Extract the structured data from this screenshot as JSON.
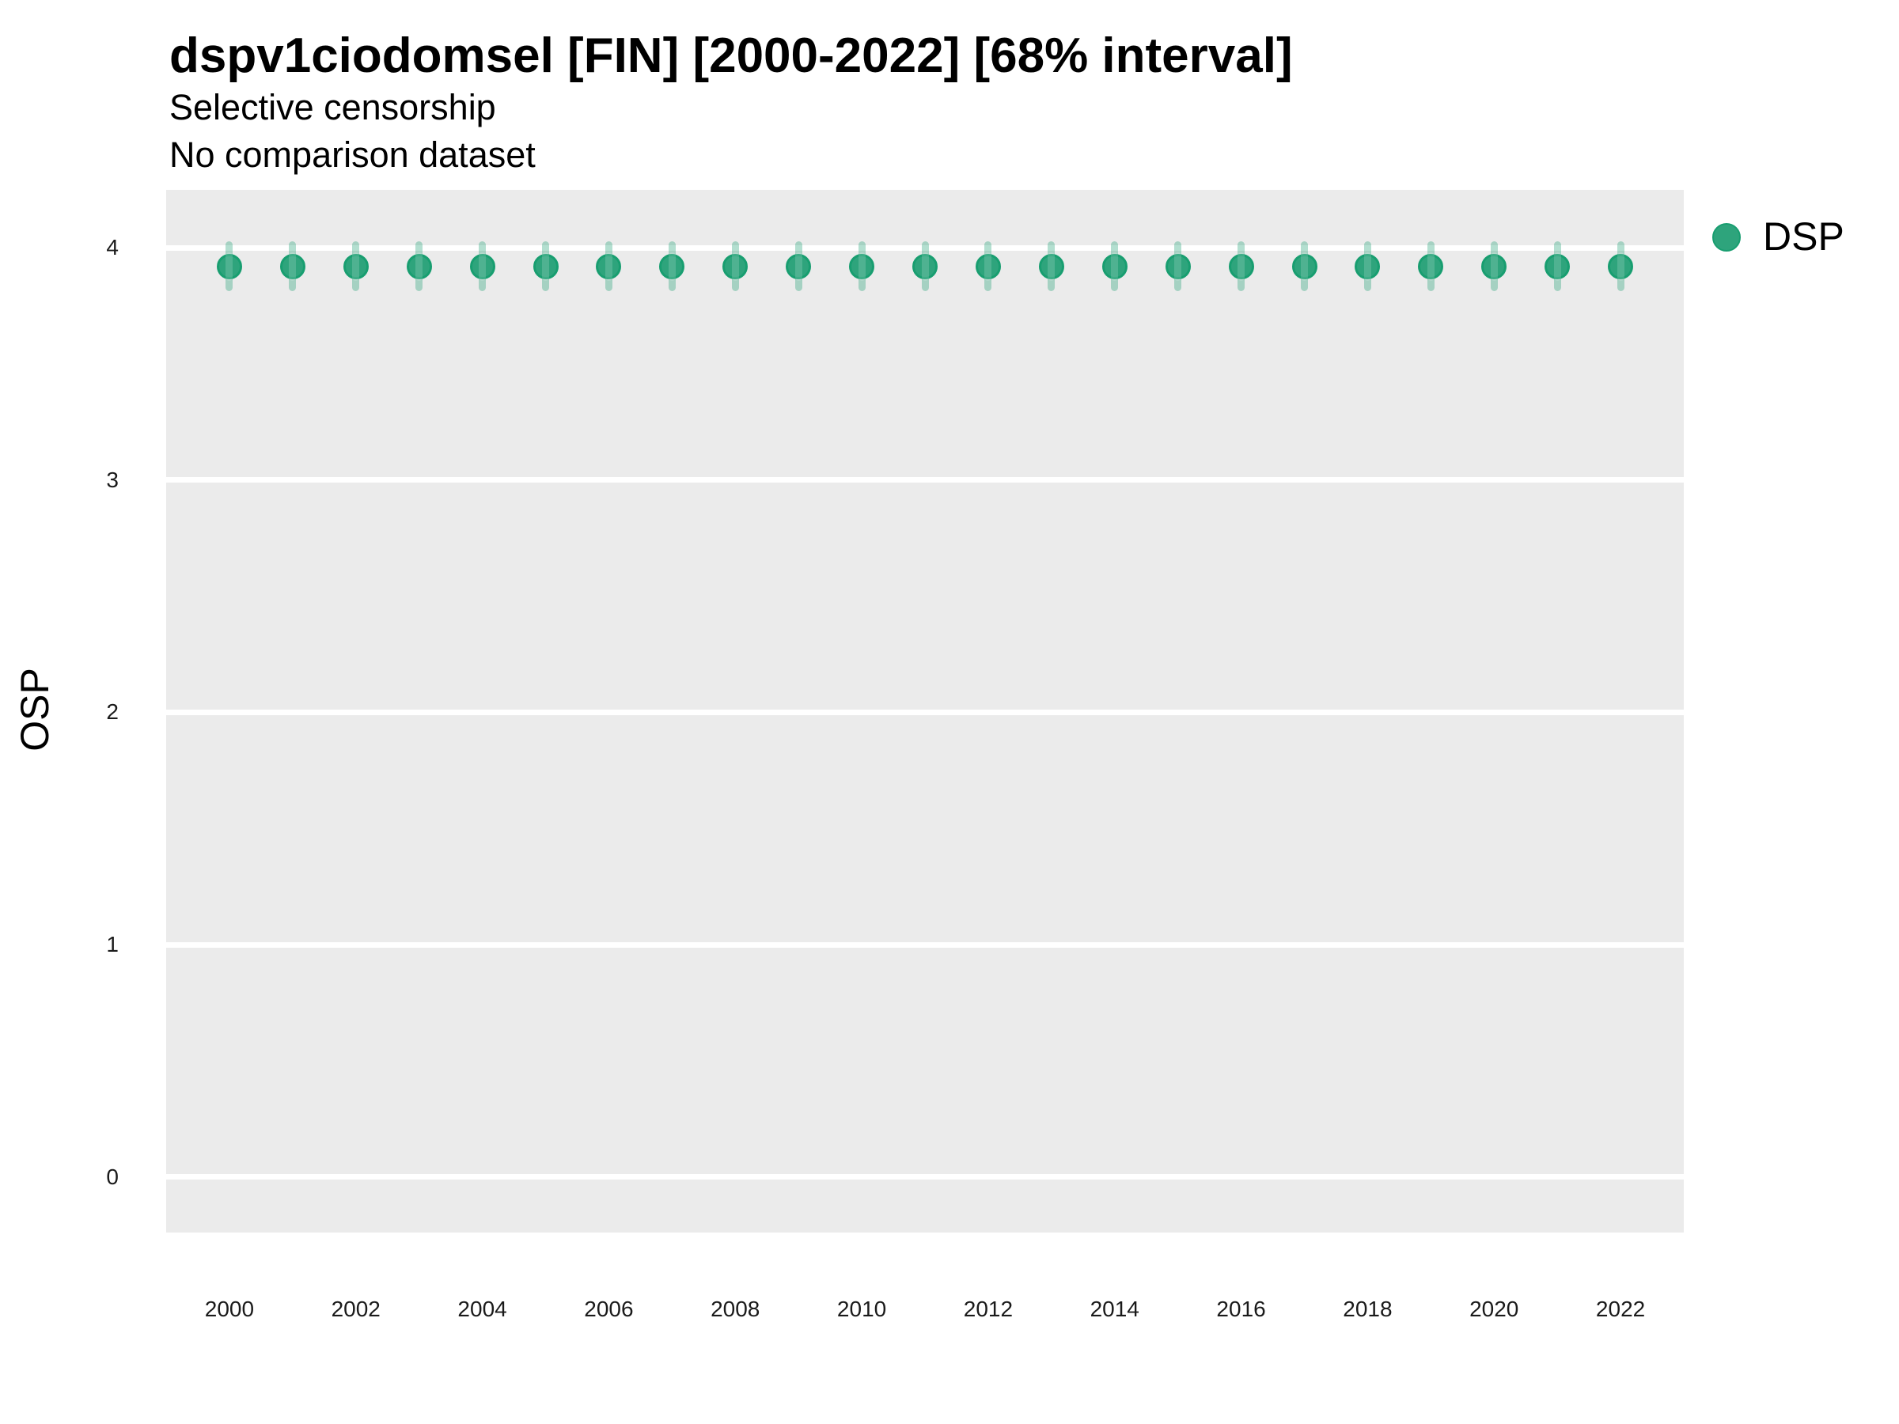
{
  "figure": {
    "title": "dspv1ciodomsel [FIN] [2000-2022] [68% interval]",
    "subtitle1": "Selective censorship",
    "subtitle2": "No comparison dataset"
  },
  "legend": {
    "position": "right-top",
    "items": [
      {
        "label": "DSP",
        "color": "#1b9e77"
      }
    ]
  },
  "colors": {
    "panel_bg": "#ebebeb",
    "grid": "#ffffff",
    "point_fill": "#2ea47c",
    "point_stroke": "#189e70",
    "interval_bar": "rgba(24,158,112,0.33)",
    "interval_stripe": "rgba(255,255,255,0.16)",
    "text": "#000000"
  },
  "chart_data": {
    "type": "scatter",
    "subtype": "pointrange",
    "title": "dspv1ciodomsel [FIN] [2000-2022] [68% interval]",
    "subtitle": [
      "Selective censorship",
      "No comparison dataset"
    ],
    "xlabel": "",
    "ylabel": "OSP",
    "interval_level": "68%",
    "grid": "horizontal-major-only",
    "legend_position": "right-top",
    "xlim": [
      1999,
      2023
    ],
    "ylim": [
      -0.24,
      4.25
    ],
    "x_ticks": [
      2000,
      2002,
      2004,
      2006,
      2008,
      2010,
      2012,
      2014,
      2016,
      2018,
      2020,
      2022
    ],
    "y_ticks": [
      0,
      1,
      2,
      3,
      4
    ],
    "series": [
      {
        "name": "DSP",
        "color": "#1b9e77",
        "points": [
          {
            "x": 2000,
            "y": 3.92,
            "lo": 3.83,
            "hi": 4.01
          },
          {
            "x": 2001,
            "y": 3.92,
            "lo": 3.83,
            "hi": 4.01
          },
          {
            "x": 2002,
            "y": 3.92,
            "lo": 3.83,
            "hi": 4.01
          },
          {
            "x": 2003,
            "y": 3.92,
            "lo": 3.83,
            "hi": 4.01
          },
          {
            "x": 2004,
            "y": 3.92,
            "lo": 3.83,
            "hi": 4.01
          },
          {
            "x": 2005,
            "y": 3.92,
            "lo": 3.83,
            "hi": 4.01
          },
          {
            "x": 2006,
            "y": 3.92,
            "lo": 3.83,
            "hi": 4.01
          },
          {
            "x": 2007,
            "y": 3.92,
            "lo": 3.83,
            "hi": 4.01
          },
          {
            "x": 2008,
            "y": 3.92,
            "lo": 3.83,
            "hi": 4.01
          },
          {
            "x": 2009,
            "y": 3.92,
            "lo": 3.83,
            "hi": 4.01
          },
          {
            "x": 2010,
            "y": 3.92,
            "lo": 3.83,
            "hi": 4.01
          },
          {
            "x": 2011,
            "y": 3.92,
            "lo": 3.83,
            "hi": 4.01
          },
          {
            "x": 2012,
            "y": 3.92,
            "lo": 3.83,
            "hi": 4.01
          },
          {
            "x": 2013,
            "y": 3.92,
            "lo": 3.83,
            "hi": 4.01
          },
          {
            "x": 2014,
            "y": 3.92,
            "lo": 3.83,
            "hi": 4.01
          },
          {
            "x": 2015,
            "y": 3.92,
            "lo": 3.83,
            "hi": 4.01
          },
          {
            "x": 2016,
            "y": 3.92,
            "lo": 3.83,
            "hi": 4.01
          },
          {
            "x": 2017,
            "y": 3.92,
            "lo": 3.83,
            "hi": 4.01
          },
          {
            "x": 2018,
            "y": 3.92,
            "lo": 3.83,
            "hi": 4.01
          },
          {
            "x": 2019,
            "y": 3.92,
            "lo": 3.83,
            "hi": 4.01
          },
          {
            "x": 2020,
            "y": 3.92,
            "lo": 3.83,
            "hi": 4.01
          },
          {
            "x": 2021,
            "y": 3.92,
            "lo": 3.83,
            "hi": 4.01
          },
          {
            "x": 2022,
            "y": 3.92,
            "lo": 3.83,
            "hi": 4.01
          }
        ]
      }
    ]
  }
}
